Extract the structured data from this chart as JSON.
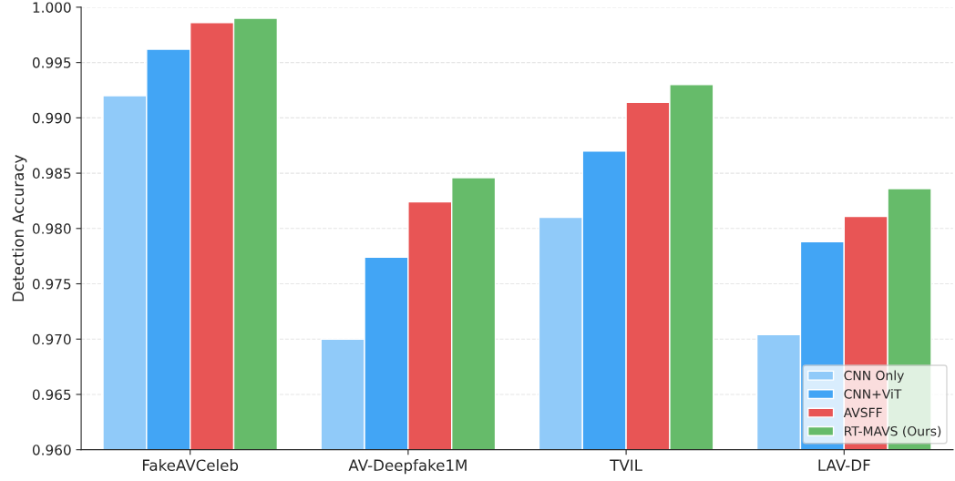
{
  "chart_data": {
    "type": "bar",
    "ylabel": "Detection Accuracy",
    "categories": [
      "FakeAVCeleb",
      "AV-Deepfake1M",
      "TVIL",
      "LAV-DF"
    ],
    "series": [
      {
        "name": "CNN Only",
        "color": "#90caf9",
        "values": [
          0.992,
          0.97,
          0.981,
          0.9704
        ]
      },
      {
        "name": "CNN+ViT",
        "color": "#42a5f5",
        "values": [
          0.9962,
          0.9774,
          0.987,
          0.9788
        ]
      },
      {
        "name": "AVSFF",
        "color": "#e85555",
        "values": [
          0.9986,
          0.9824,
          0.9914,
          0.9811
        ]
      },
      {
        "name": "RT-MAVS (Ours)",
        "color": "#66bb6a",
        "values": [
          0.999,
          0.9846,
          0.993,
          0.9836
        ]
      }
    ],
    "ylim": [
      0.96,
      1.0
    ],
    "yticks": [
      {
        "value": 0.96,
        "label": "0.960"
      },
      {
        "value": 0.965,
        "label": "0.965"
      },
      {
        "value": 0.97,
        "label": "0.970"
      },
      {
        "value": 0.975,
        "label": "0.975"
      },
      {
        "value": 0.98,
        "label": "0.980"
      },
      {
        "value": 0.985,
        "label": "0.985"
      },
      {
        "value": 0.99,
        "label": "0.990"
      },
      {
        "value": 0.995,
        "label": "0.995"
      },
      {
        "value": 1.0,
        "label": "1.000"
      }
    ],
    "grid": "y",
    "legend": "bottom right"
  }
}
